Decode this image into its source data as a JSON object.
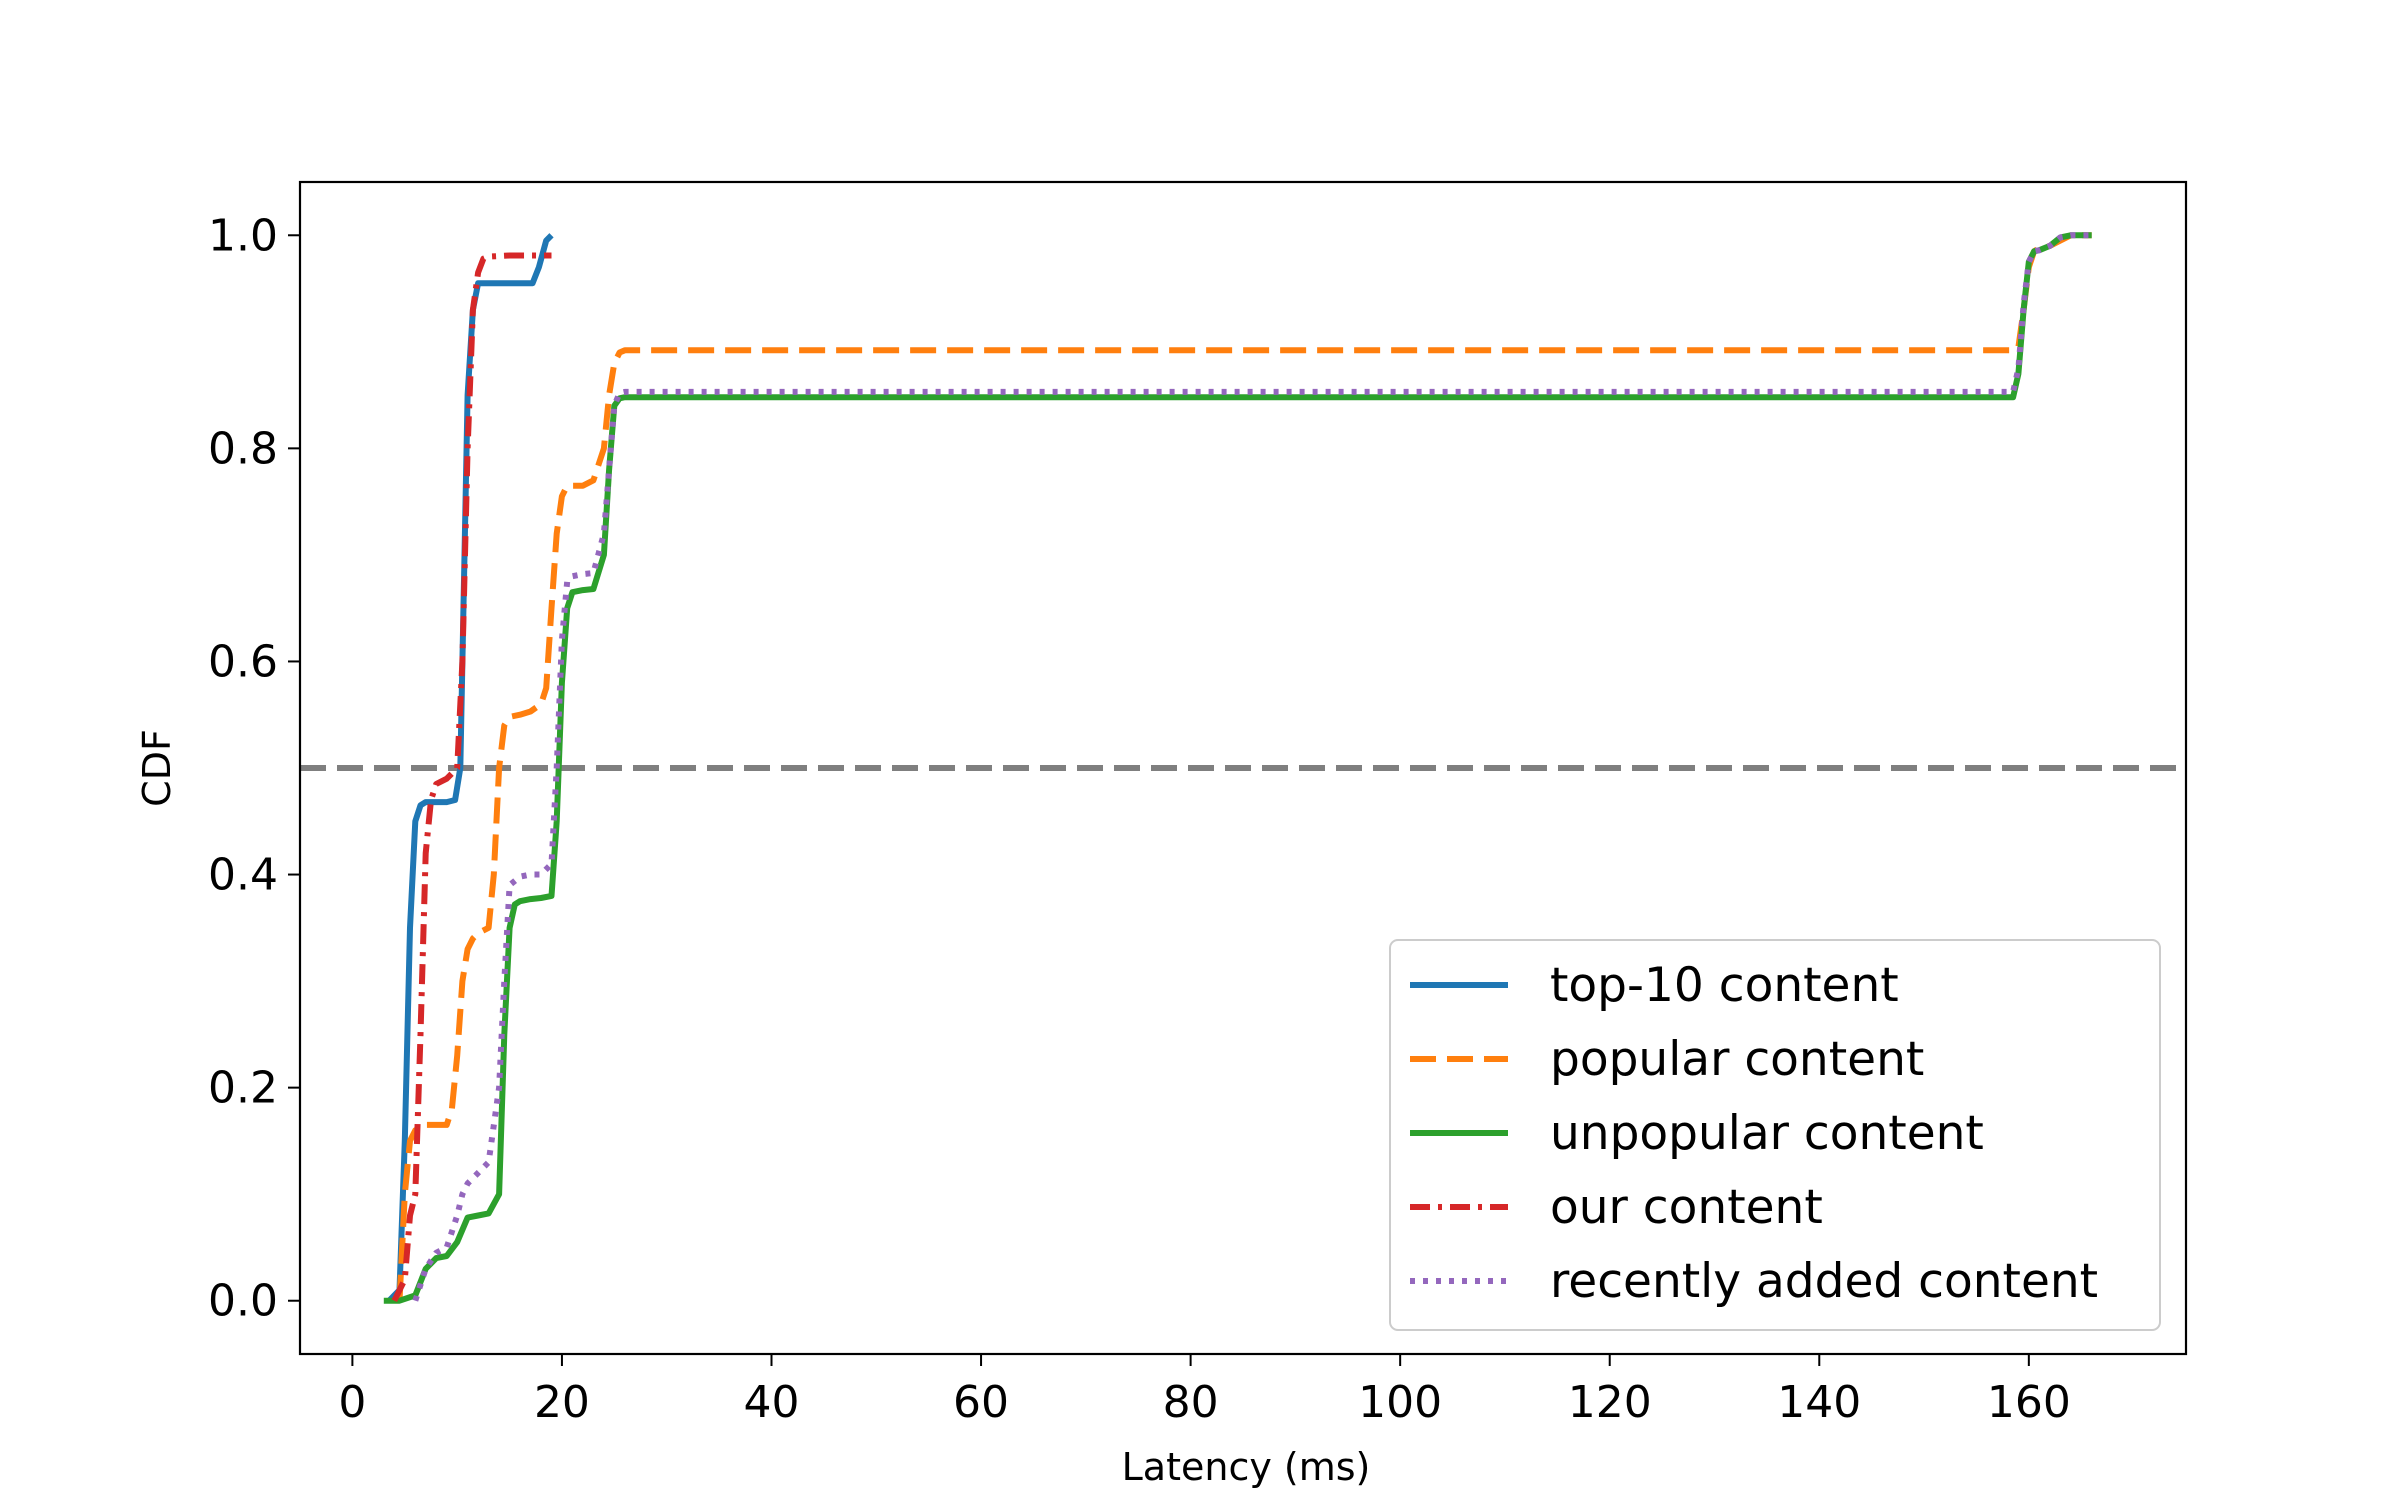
{
  "chart_data": {
    "type": "line",
    "title": "",
    "xlabel": "Latency (ms)",
    "ylabel": "CDF",
    "xlim": [
      -5,
      175
    ],
    "ylim": [
      -0.05,
      1.05
    ],
    "xticks": [
      0,
      20,
      40,
      60,
      80,
      100,
      120,
      140,
      160
    ],
    "yticks": [
      0.0,
      0.2,
      0.4,
      0.6,
      0.8,
      1.0
    ],
    "grid": false,
    "legend_position": "lower-right",
    "reference_line": {
      "y": 0.5,
      "color": "#7f7f7f",
      "style": "dashed"
    },
    "series": [
      {
        "name": "top-10 content",
        "color": "#1f77b4",
        "dash": "solid",
        "x": [
          3.5,
          4.5,
          5,
          5.5,
          6,
          6.5,
          7,
          8,
          9,
          9.8,
          10.3,
          10.7,
          11,
          11.5,
          12,
          14,
          16,
          17.2,
          17.8,
          18.5,
          19
        ],
        "y": [
          0,
          0.01,
          0.15,
          0.35,
          0.45,
          0.465,
          0.468,
          0.468,
          0.468,
          0.47,
          0.5,
          0.7,
          0.85,
          0.93,
          0.955,
          0.955,
          0.955,
          0.955,
          0.97,
          0.995,
          1.0
        ]
      },
      {
        "name": "popular content",
        "color": "#ff7f0e",
        "dash": "dashed",
        "x": [
          4.5,
          5,
          5.5,
          6,
          7,
          8,
          9,
          9.5,
          10,
          10.5,
          11,
          11.5,
          12,
          13,
          13.5,
          14,
          14.5,
          15,
          16,
          17,
          18,
          18.5,
          19,
          19.5,
          20,
          20.5,
          21,
          22,
          23,
          24,
          24.5,
          25,
          25.5,
          26,
          40,
          80,
          120,
          158.5,
          159,
          159.5,
          160,
          160.5,
          161,
          162,
          163,
          164,
          165,
          166
        ],
        "y": [
          0,
          0.1,
          0.15,
          0.16,
          0.165,
          0.165,
          0.165,
          0.18,
          0.23,
          0.3,
          0.33,
          0.34,
          0.345,
          0.35,
          0.4,
          0.5,
          0.54,
          0.548,
          0.55,
          0.553,
          0.56,
          0.575,
          0.65,
          0.72,
          0.755,
          0.765,
          0.765,
          0.765,
          0.77,
          0.8,
          0.85,
          0.88,
          0.89,
          0.892,
          0.892,
          0.892,
          0.892,
          0.892,
          0.895,
          0.93,
          0.97,
          0.985,
          0.988,
          0.99,
          0.995,
          1.0,
          1.0,
          1.0
        ]
      },
      {
        "name": "unpopular content",
        "color": "#2ca02c",
        "dash": "solid",
        "x": [
          3,
          4.5,
          6,
          7,
          8,
          9,
          10,
          11,
          12,
          13,
          14,
          14.5,
          15,
          15.5,
          16,
          17,
          18,
          19,
          19.5,
          20,
          20.5,
          21,
          22,
          23,
          24,
          24.5,
          25,
          25.5,
          26,
          40,
          80,
          120,
          158.5,
          159,
          159.5,
          160,
          160.5,
          161,
          162,
          163,
          164,
          165,
          166
        ],
        "y": [
          0,
          0,
          0.005,
          0.03,
          0.04,
          0.042,
          0.055,
          0.078,
          0.08,
          0.082,
          0.1,
          0.25,
          0.35,
          0.372,
          0.375,
          0.377,
          0.378,
          0.38,
          0.45,
          0.58,
          0.65,
          0.665,
          0.667,
          0.668,
          0.7,
          0.78,
          0.84,
          0.847,
          0.848,
          0.848,
          0.848,
          0.848,
          0.848,
          0.87,
          0.93,
          0.975,
          0.985,
          0.986,
          0.99,
          0.998,
          1.0,
          1.0,
          1.0
        ]
      },
      {
        "name": "our content",
        "color": "#d62728",
        "dash": "dashdot",
        "x": [
          4,
          5,
          5.5,
          6,
          6.5,
          7,
          7.5,
          8,
          9,
          10,
          10.5,
          11,
          11.5,
          12,
          12.5,
          13,
          15,
          17,
          19
        ],
        "y": [
          0,
          0.02,
          0.08,
          0.1,
          0.25,
          0.42,
          0.47,
          0.485,
          0.49,
          0.5,
          0.6,
          0.8,
          0.93,
          0.965,
          0.978,
          0.98,
          0.981,
          0.981,
          0.981
        ]
      },
      {
        "name": "recently added content",
        "color": "#9467bd",
        "dash": "dotted",
        "x": [
          6,
          7,
          8,
          9,
          10,
          10.5,
          11,
          12,
          13,
          14,
          14.5,
          15,
          16,
          17,
          18,
          19,
          19.5,
          20,
          20.5,
          21,
          22,
          23,
          24,
          25,
          25.5,
          26,
          40,
          80,
          120,
          158.5,
          159,
          159.5,
          160,
          160.5,
          161,
          162,
          163,
          164,
          165,
          166
        ],
        "y": [
          0,
          0.03,
          0.045,
          0.05,
          0.08,
          0.1,
          0.11,
          0.12,
          0.13,
          0.2,
          0.3,
          0.39,
          0.398,
          0.4,
          0.4,
          0.41,
          0.5,
          0.62,
          0.675,
          0.68,
          0.682,
          0.683,
          0.72,
          0.84,
          0.852,
          0.853,
          0.853,
          0.853,
          0.853,
          0.853,
          0.875,
          0.935,
          0.975,
          0.985,
          0.986,
          0.99,
          0.998,
          1.0,
          1.0,
          1.0
        ]
      }
    ]
  }
}
